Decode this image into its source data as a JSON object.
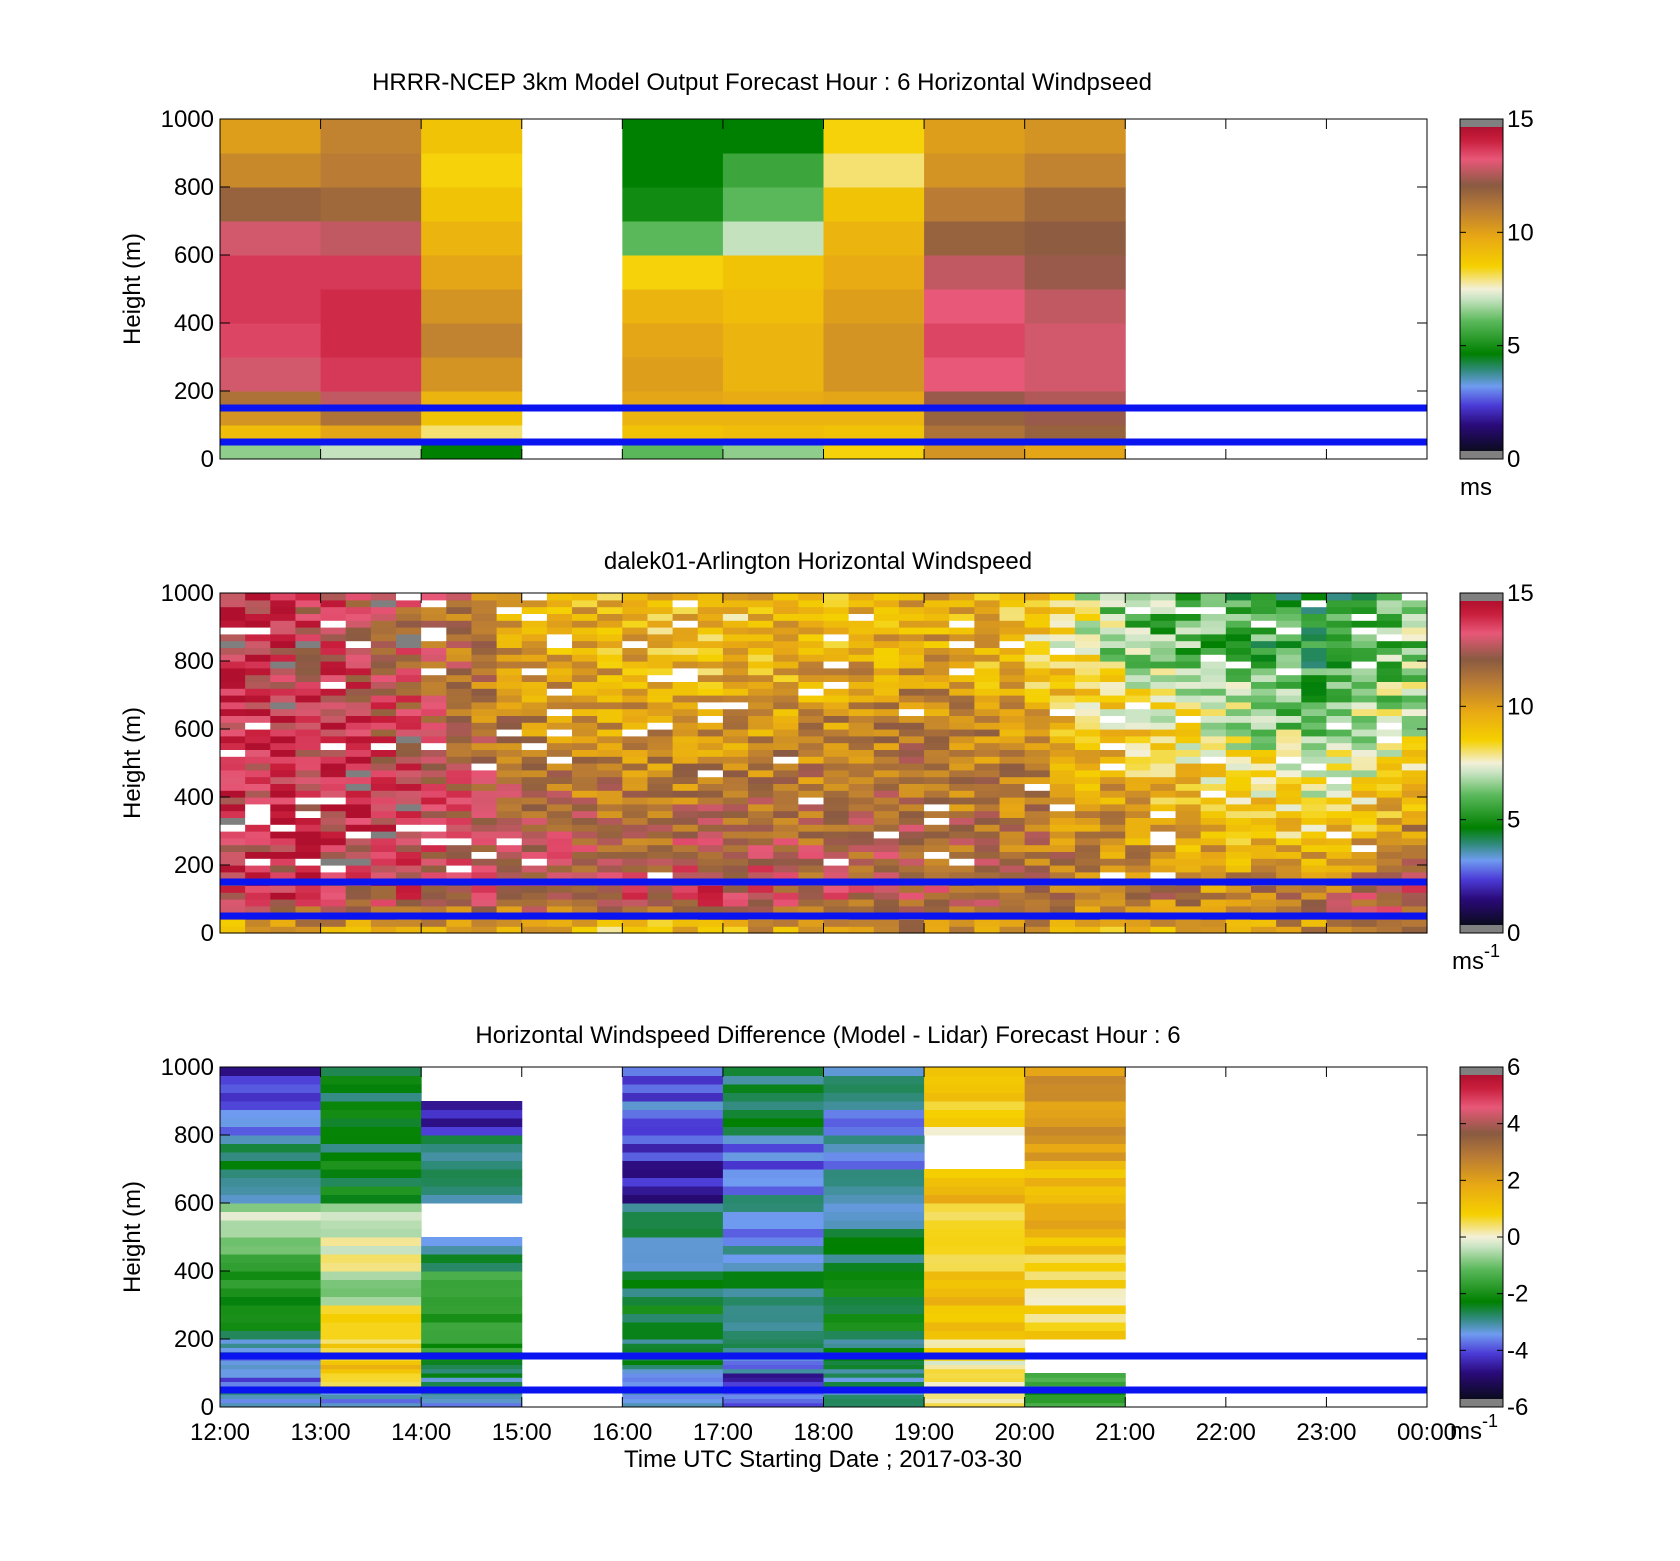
{
  "figure": {
    "xlabel": "Time UTC  Starting Date ; 2017-03-30",
    "x_ticks": [
      "12:00",
      "13:00",
      "14:00",
      "15:00",
      "16:00",
      "17:00",
      "18:00",
      "19:00",
      "20:00",
      "21:00",
      "22:00",
      "23:00",
      "00:00"
    ],
    "y_ticks": [
      "0",
      "200",
      "400",
      "600",
      "800",
      "1000"
    ],
    "reference_lines_m": [
      50,
      150
    ],
    "reference_line_color": "#0a14f0"
  },
  "chart_data": [
    {
      "type": "heatmap",
      "title": "HRRR-NCEP 3km Model Output   Forecast Hour : 6 Horizontal Windpseed",
      "ylabel": "Height (m)",
      "ylim": [
        0,
        1000
      ],
      "x_range_hours_utc": [
        12,
        24
      ],
      "colorbar": {
        "range": [
          0,
          15
        ],
        "ticks": [
          "0",
          "5",
          "10",
          "15"
        ],
        "unit": "ms",
        "unit_exp": ""
      },
      "value_bands_m": [
        [
          0,
          50
        ],
        [
          50,
          100
        ],
        [
          100,
          150
        ],
        [
          150,
          200
        ],
        [
          200,
          300
        ],
        [
          300,
          400
        ],
        [
          400,
          500
        ],
        [
          500,
          600
        ],
        [
          600,
          700
        ],
        [
          700,
          800
        ],
        [
          800,
          900
        ],
        [
          900,
          1000
        ]
      ],
      "columns": [
        {
          "start_hour": 12,
          "values": [
            6.5,
            9.2,
            10.5,
            11.5,
            13.2,
            13.8,
            14.0,
            14.0,
            13.2,
            12.0,
            10.8,
            10.2
          ]
        },
        {
          "start_hour": 13,
          "values": [
            7.0,
            10.0,
            11.5,
            13.0,
            14.0,
            14.2,
            14.2,
            14.0,
            13.0,
            11.8,
            11.2,
            11.0
          ]
        },
        {
          "start_hour": 14,
          "values": [
            4.5,
            8.0,
            9.0,
            9.5,
            10.5,
            11.0,
            10.5,
            10.0,
            9.5,
            9.0,
            8.5,
            9.0
          ]
        },
        {
          "start_hour": 16,
          "values": [
            6.0,
            9.0,
            9.5,
            10.0,
            10.2,
            10.0,
            9.5,
            8.5,
            6.0,
            4.8,
            4.5,
            4.5
          ]
        },
        {
          "start_hour": 17,
          "values": [
            6.5,
            9.2,
            9.5,
            9.8,
            9.5,
            9.5,
            9.2,
            9.0,
            7.0,
            6.0,
            5.5,
            4.5
          ]
        },
        {
          "start_hour": 18,
          "values": [
            8.5,
            9.0,
            9.5,
            10.0,
            10.5,
            10.5,
            10.2,
            9.8,
            9.5,
            9.0,
            8.0,
            8.5
          ]
        },
        {
          "start_hour": 19,
          "values": [
            10.5,
            11.5,
            12.0,
            12.5,
            13.5,
            13.8,
            13.5,
            13.0,
            12.0,
            11.2,
            10.5,
            10.2
          ]
        },
        {
          "start_hour": 20,
          "values": [
            10.0,
            12.0,
            12.5,
            12.8,
            13.2,
            13.2,
            13.0,
            12.5,
            12.2,
            11.8,
            11.0,
            10.5
          ]
        }
      ]
    },
    {
      "type": "heatmap",
      "title": "dalek01-Arlington  Horizontal Windspeed",
      "ylabel": "Height (m)",
      "ylim": [
        0,
        1000
      ],
      "x_range_hours_utc": [
        12,
        24
      ],
      "colorbar": {
        "range": [
          0,
          15
        ],
        "ticks": [
          "0",
          "5",
          "10",
          "15"
        ],
        "unit": "ms",
        "unit_exp": "-1"
      },
      "time_bin_minutes": 15,
      "profile_hours": [
        12,
        13,
        14,
        15,
        16,
        17,
        18,
        19,
        20,
        21,
        22,
        23,
        23.9
      ],
      "profiles": [
        {
          "band": "0-50 m",
          "values": [
            9.5,
            10.5,
            10.0,
            9.5,
            9.0,
            9.5,
            10.5,
            11.0,
            10.5,
            9.5,
            10.0,
            10.5,
            11.5
          ]
        },
        {
          "band": "50-150 m",
          "values": [
            14.0,
            13.5,
            13.0,
            13.0,
            13.5,
            13.5,
            12.5,
            12.5,
            12.0,
            11.5,
            11.0,
            12.0,
            13.5
          ]
        },
        {
          "band": "150-400 m",
          "values": [
            14.0,
            14.0,
            13.5,
            12.5,
            12.0,
            12.5,
            12.0,
            12.0,
            11.5,
            10.5,
            9.5,
            9.0,
            11.0
          ]
        },
        {
          "band": "400-700 m",
          "values": [
            14.0,
            14.0,
            13.0,
            11.0,
            10.5,
            10.5,
            11.0,
            11.5,
            10.5,
            9.0,
            8.0,
            6.5,
            8.0
          ]
        },
        {
          "band": "700-1000 m",
          "values": [
            14.0,
            13.5,
            12.5,
            10.0,
            9.5,
            9.0,
            9.5,
            10.0,
            9.0,
            6.5,
            5.5,
            4.8,
            6.5
          ]
        }
      ],
      "missing_data_color": "#ffffff",
      "no_retrieval_color": "#7f7f7f"
    },
    {
      "type": "heatmap",
      "title": "Horizontal Windspeed Difference (Model - Lidar) Forecast Hour : 6",
      "ylabel": "Height (m)",
      "ylim": [
        0,
        1000
      ],
      "x_range_hours_utc": [
        12,
        24
      ],
      "colorbar": {
        "range": [
          -6,
          6
        ],
        "ticks": [
          "-6",
          "-4",
          "-2",
          "0",
          "2",
          "4",
          "6"
        ],
        "unit": "ms",
        "unit_exp": "-1"
      },
      "value_bands_m": [
        [
          0,
          50
        ],
        [
          50,
          100
        ],
        [
          100,
          150
        ],
        [
          150,
          200
        ],
        [
          200,
          300
        ],
        [
          300,
          400
        ],
        [
          400,
          500
        ],
        [
          500,
          600
        ],
        [
          600,
          700
        ],
        [
          700,
          800
        ],
        [
          800,
          900
        ],
        [
          900,
          1000
        ]
      ],
      "columns": [
        {
          "start_hour": 12,
          "values": [
            -3.5,
            -4.0,
            -3.8,
            -3.2,
            -2.5,
            -2.0,
            -1.5,
            -0.5,
            -3.0,
            -3.0,
            -4.0,
            -4.5
          ]
        },
        {
          "start_hour": 13,
          "values": [
            -3.5,
            0.8,
            1.2,
            1.0,
            1.0,
            -1.0,
            0.2,
            -0.5,
            -2.5,
            -2.5,
            -2.5,
            -2.8
          ]
        },
        {
          "start_hour": 14,
          "values": [
            -3.5,
            -3.0,
            -2.5,
            -2.0,
            -1.5,
            -2.0,
            -3.0,
            null,
            -3.0,
            -3.2,
            -4.5,
            null
          ]
        },
        {
          "start_hour": 16,
          "values": [
            -3.5,
            -3.5,
            -3.0,
            -3.0,
            -2.5,
            -2.5,
            -3.0,
            -3.0,
            -4.8,
            -4.5,
            -4.0,
            -4.2
          ]
        },
        {
          "start_hour": 17,
          "values": [
            -4.0,
            -4.5,
            -3.5,
            -3.0,
            -3.0,
            -3.0,
            -3.5,
            -3.5,
            -3.5,
            -4.0,
            -3.0,
            -3.0
          ]
        },
        {
          "start_hour": 18,
          "values": [
            -3.0,
            -3.0,
            -3.0,
            -2.8,
            -2.5,
            -2.5,
            -2.8,
            -3.0,
            -3.0,
            -3.5,
            -3.5,
            -3.0
          ]
        },
        {
          "start_hour": 19,
          "values": [
            0.2,
            0.5,
            0.3,
            0.5,
            1.0,
            1.2,
            0.5,
            1.0,
            1.5,
            null,
            0.5,
            0.8
          ]
        },
        {
          "start_hour": 20,
          "values": [
            -2.0,
            -1.5,
            null,
            null,
            0.8,
            0.5,
            1.0,
            1.5,
            1.5,
            2.0,
            2.5,
            2.5
          ]
        }
      ]
    }
  ]
}
